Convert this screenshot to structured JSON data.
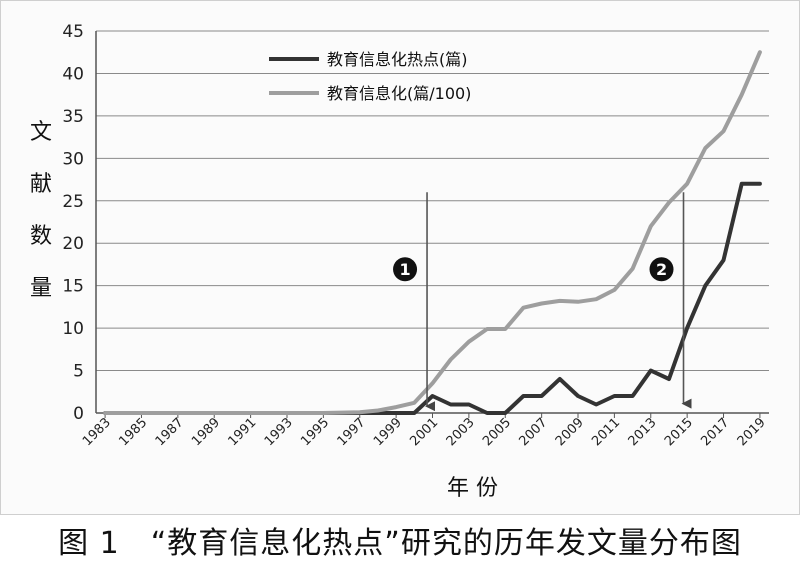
{
  "chart_data": {
    "type": "line",
    "title": "",
    "xlabel": "年 份",
    "ylabel": "文献数量",
    "ylim": [
      0,
      45
    ],
    "yticks": [
      0,
      5,
      10,
      15,
      20,
      25,
      30,
      35,
      40,
      45
    ],
    "xticks": [
      "1983",
      "1985",
      "1987",
      "1989",
      "1991",
      "1993",
      "1995",
      "1997",
      "1999",
      "2001",
      "2003",
      "2005",
      "2007",
      "2009",
      "2011",
      "2013",
      "2015",
      "2017",
      "2019"
    ],
    "grid": "horizontal",
    "legend_placement": "top-center",
    "x": [
      1983,
      1984,
      1985,
      1986,
      1987,
      1988,
      1989,
      1990,
      1991,
      1992,
      1993,
      1994,
      1995,
      1996,
      1997,
      1998,
      1999,
      2000,
      2001,
      2002,
      2003,
      2004,
      2005,
      2006,
      2007,
      2008,
      2009,
      2010,
      2011,
      2012,
      2013,
      2014,
      2015,
      2016,
      2017,
      2018,
      2019
    ],
    "series": [
      {
        "name": "教育信息化热点(篇)",
        "color": "#333333",
        "values": [
          0,
          0,
          0,
          0,
          0,
          0,
          0,
          0,
          0,
          0,
          0,
          0,
          0,
          0,
          0,
          0,
          0,
          0,
          2,
          1,
          1,
          0,
          0,
          2,
          2,
          4,
          2,
          1,
          2,
          2,
          5,
          4,
          10,
          15,
          18,
          27,
          27
        ]
      },
      {
        "name": "教育信息化(篇/100)",
        "color": "#9e9e9e",
        "values": [
          0,
          0,
          0,
          0,
          0,
          0,
          0,
          0,
          0,
          0,
          0,
          0,
          0,
          0.05,
          0.1,
          0.3,
          0.7,
          1.2,
          3.5,
          6.3,
          8.4,
          9.9,
          9.9,
          12.4,
          12.9,
          13.2,
          13.1,
          13.4,
          14.5,
          17,
          22,
          24.8,
          27,
          31.2,
          33.2,
          37.5,
          42.5
        ]
      }
    ],
    "annotations": [
      {
        "label": "1",
        "x": 2000.7,
        "arrow_from_y": 26,
        "arrow_to_y": 0.8,
        "badge_y": 13.4
      },
      {
        "label": "2",
        "x": 2014.8,
        "arrow_from_y": 26,
        "arrow_to_y": 1.1,
        "badge_y": 13.4
      }
    ]
  },
  "caption": "图 1　“教育信息化热点”研究的历年发文量分布图"
}
